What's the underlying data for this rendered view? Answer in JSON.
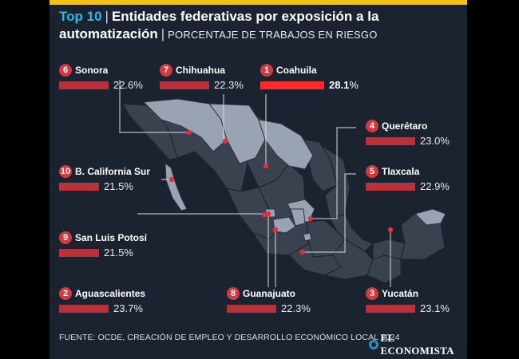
{
  "header": {
    "top10": "Top 10",
    "title_rest": "Entidades federativas por exposición a la automatización",
    "subtitle": "PORCENTAJE DE TRABAJOS EN RIESGO"
  },
  "chart_data": {
    "type": "map",
    "title": "Top 10 | Entidades federativas por exposición a la automatización",
    "subtitle": "PORCENTAJE DE TRABAJOS EN RIESGO",
    "unit": "%",
    "series": [
      {
        "rank": "1",
        "state": "Coahuila",
        "value": 28.1,
        "value_text": "28.1"
      },
      {
        "rank": "2",
        "state": "Aguascalientes",
        "value": 23.7,
        "value_text": "23.7"
      },
      {
        "rank": "3",
        "state": "Yucatán",
        "value": 23.1,
        "value_text": "23.1"
      },
      {
        "rank": "4",
        "state": "Querétaro",
        "value": 23.0,
        "value_text": "23.0"
      },
      {
        "rank": "5",
        "state": "Tlaxcala",
        "value": 22.9,
        "value_text": "22.9"
      },
      {
        "rank": "6",
        "state": "Sonora",
        "value": 22.6,
        "value_text": "22.6"
      },
      {
        "rank": "7",
        "state": "Chihuahua",
        "value": 22.3,
        "value_text": "22.3"
      },
      {
        "rank": "8",
        "state": "Guanajuato",
        "value": 22.3,
        "value_text": "22.3"
      },
      {
        "rank": "9",
        "state": "San Luis Potosí",
        "value": 21.5,
        "value_text": "21.5"
      },
      {
        "rank": "10",
        "state": "B. California Sur",
        "value": 21.5,
        "value_text": "21.5"
      }
    ]
  },
  "footer": {
    "source": "FUENTE: OCDE, CREACIÓN DE EMPLEO Y DESARROLLO ECONÓMICO LOCAL 2024",
    "brand": "EL ECONOMISTA"
  },
  "colors": {
    "background": "#1b2230",
    "accent": "#2fb7e6",
    "top_bar": "#ff2b2b",
    "bar": "#b8323b",
    "badge": "#d23a3f",
    "highlight_state": "#9aa3b1",
    "other_state": "#3a4250",
    "brand_bar": "#f2c21b"
  }
}
